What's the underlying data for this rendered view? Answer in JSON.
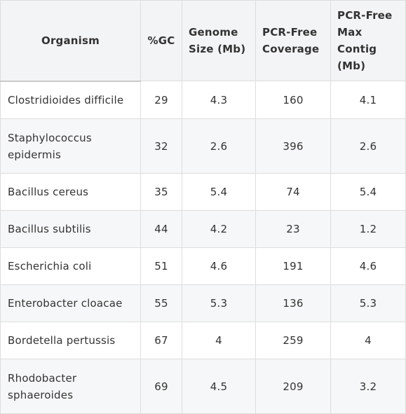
{
  "table": {
    "headers": {
      "organism": "Organism",
      "gc": "%GC",
      "genome_size": "Genome Size (Mb)",
      "pcr_free_coverage": "PCR-Free Coverage",
      "pcr_free_max_contig": "PCR-Free Max Contig (Mb)"
    },
    "rows": [
      {
        "organism": "Clostridioides difficile",
        "gc": "29",
        "genome_size": "4.3",
        "coverage": "160",
        "max_contig": "4.1"
      },
      {
        "organism": "Staphylococcus epidermis",
        "gc": "32",
        "genome_size": "2.6",
        "coverage": "396",
        "max_contig": "2.6"
      },
      {
        "organism": "Bacillus cereus",
        "gc": "35",
        "genome_size": "5.4",
        "coverage": "74",
        "max_contig": "5.4"
      },
      {
        "organism": "Bacillus subtilis",
        "gc": "44",
        "genome_size": "4.2",
        "coverage": "23",
        "max_contig": "1.2"
      },
      {
        "organism": "Escherichia coli",
        "gc": "51",
        "genome_size": "4.6",
        "coverage": "191",
        "max_contig": "4.6"
      },
      {
        "organism": "Enterobacter cloacae",
        "gc": "55",
        "genome_size": "5.3",
        "coverage": "136",
        "max_contig": "5.3"
      },
      {
        "organism": "Bordetella pertussis",
        "gc": "67",
        "genome_size": "4",
        "coverage": "259",
        "max_contig": "4"
      },
      {
        "organism": "Rhodobacter sphaeroides",
        "gc": "69",
        "genome_size": "4.5",
        "coverage": "209",
        "max_contig": "3.2"
      }
    ]
  },
  "colors": {
    "header_bg": "#f3f4f6",
    "row_alt_bg": "#f6f7f8",
    "border": "#dddddd",
    "text": "#333333"
  }
}
